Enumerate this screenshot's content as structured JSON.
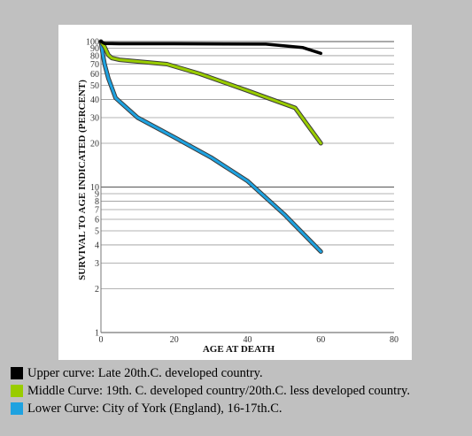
{
  "chart_data": {
    "type": "line",
    "title": "",
    "xlabel": "AGE AT DEATH",
    "ylabel": "SURVIVAL TO AGE INDICATED (PERCENT)",
    "xlim": [
      0,
      80
    ],
    "ylim": [
      1,
      100
    ],
    "yscale": "log",
    "grid": "horizontal",
    "x_ticks": [
      0,
      20,
      40,
      60,
      80
    ],
    "x_tick_labels": [
      "0",
      "20",
      "40",
      "60",
      "80"
    ],
    "y_ticks": [
      1,
      2,
      3,
      4,
      5,
      6,
      7,
      8,
      9,
      10,
      20,
      30,
      40,
      50,
      60,
      70,
      80,
      90,
      100
    ],
    "y_tick_labels": [
      "1",
      "2",
      "3",
      "4",
      "5",
      "6",
      "7",
      "8",
      "9",
      "10",
      "20",
      "30",
      "40",
      "50",
      "60",
      "70",
      "80",
      "90",
      "100"
    ],
    "series": [
      {
        "name": "Upper curve: Late 20th.C. developed country.",
        "color": "#000000",
        "points": [
          [
            0,
            100
          ],
          [
            1,
            97
          ],
          [
            5,
            96.5
          ],
          [
            20,
            96.5
          ],
          [
            45,
            96
          ],
          [
            55,
            91
          ],
          [
            60,
            83
          ]
        ]
      },
      {
        "name": "Middle Curve: 19th. C. developed country/20th.C. less developed country.",
        "color": "#99cc00",
        "points": [
          [
            0,
            100
          ],
          [
            1,
            92
          ],
          [
            2,
            81
          ],
          [
            3,
            77
          ],
          [
            5,
            75
          ],
          [
            18,
            70
          ],
          [
            27,
            60
          ],
          [
            40,
            46
          ],
          [
            53,
            35
          ],
          [
            60,
            20
          ]
        ]
      },
      {
        "name": "Lower Curve: City of York (England), 16-17th.C.",
        "color": "#1ea2e0",
        "points": [
          [
            0,
            100
          ],
          [
            0.5,
            82
          ],
          [
            1,
            70
          ],
          [
            2,
            56
          ],
          [
            4,
            41
          ],
          [
            10,
            30
          ],
          [
            20,
            22
          ],
          [
            30,
            16
          ],
          [
            40,
            11
          ],
          [
            50,
            6.5
          ],
          [
            60,
            3.6
          ]
        ]
      }
    ]
  },
  "legend": {
    "items": [
      {
        "label": "Upper curve: Late 20th.C. developed country.",
        "color": "#000000"
      },
      {
        "label": "Middle Curve: 19th. C. developed country/20th.C. less developed country.",
        "color": "#99cc00"
      },
      {
        "label": "Lower Curve: City of York (England), 16-17th.C.",
        "color": "#1ea2e0"
      }
    ]
  }
}
